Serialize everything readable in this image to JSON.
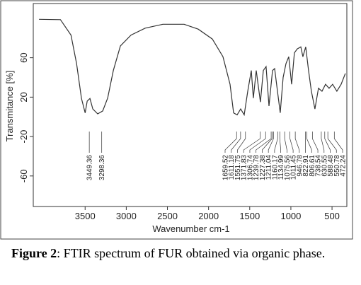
{
  "chart_data": {
    "type": "line",
    "x_label": "Wavenumber cm-1",
    "y_label": "Transmitance [%]",
    "xlim": [
      4130,
      320
    ],
    "ylim": [
      -91,
      115
    ],
    "xticks": [
      3500,
      3000,
      2500,
      2000,
      1500,
      1000,
      500
    ],
    "yticks": [
      60,
      20,
      -20,
      -60
    ],
    "color": "#333333",
    "x": [
      4060,
      3800,
      3672,
      3604,
      3544,
      3500,
      3475,
      3441,
      3407,
      3347,
      3286,
      3226,
      3157,
      3071,
      2942,
      2770,
      2555,
      2297,
      2126,
      1954,
      1825,
      1739,
      1696,
      1653,
      1610,
      1567,
      1524,
      1481,
      1456,
      1421,
      1370,
      1335,
      1301,
      1266,
      1223,
      1197,
      1163,
      1129,
      1094,
      1060,
      1026,
      991,
      957,
      922,
      879,
      854,
      820,
      785,
      751,
      708,
      665,
      622,
      579,
      536,
      493,
      441,
      390,
      338
    ],
    "values": [
      99,
      98.6,
      83,
      54,
      18.6,
      4,
      16,
      18.6,
      8,
      3,
      6,
      19,
      47,
      72,
      83,
      90,
      94,
      94,
      89,
      79,
      61,
      33,
      4,
      2,
      8,
      2,
      26,
      47,
      19,
      47,
      15,
      47,
      51,
      11,
      47,
      49,
      26,
      4,
      40,
      54,
      61,
      33,
      65,
      69,
      71,
      61,
      71,
      47,
      26,
      8,
      29,
      26,
      33,
      29,
      33,
      26,
      33,
      44
    ],
    "peaks": [
      3449.36,
      3298.36,
      1659.52,
      1611.18,
      1551.75,
      1371.83,
      1306.74,
      1239.78,
      1227.38,
      1211.04,
      1160.17,
      1134.99,
      1075.56,
      1011.45,
      946.78,
      822.91,
      806.61,
      738.54,
      630.55,
      588.48,
      550.78,
      472.24
    ]
  },
  "caption": {
    "label": "Figure 2",
    "text": ": FTIR spectrum of FUR obtained via organic phase."
  }
}
